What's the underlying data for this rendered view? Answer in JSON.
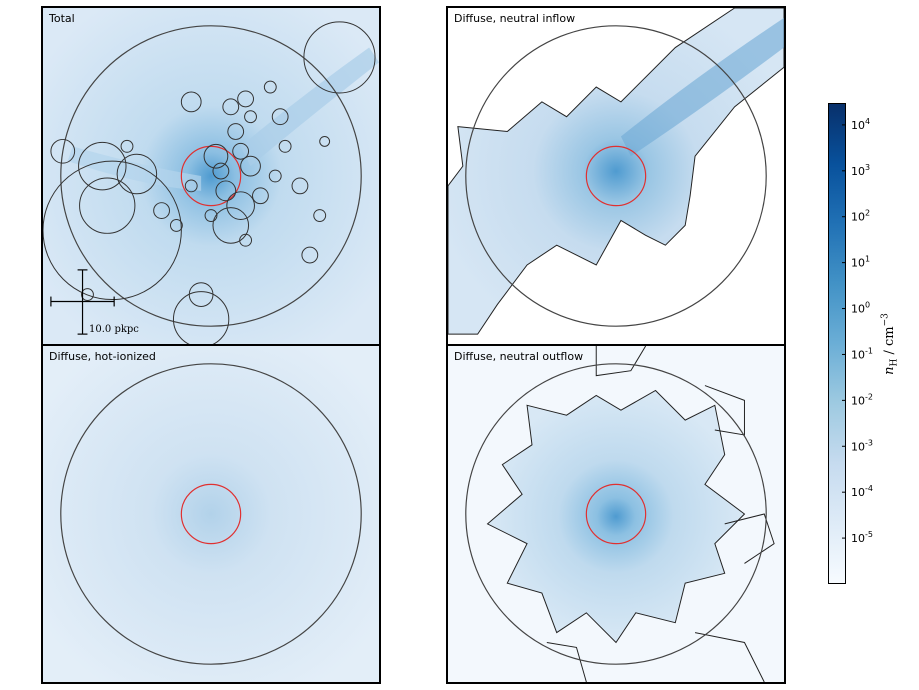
{
  "chart_data": {
    "type": "heatmap",
    "panels": [
      {
        "id": "total",
        "title": "Total",
        "scale_bar_label": "10.0 pkpc"
      },
      {
        "id": "inflow",
        "title": "Diffuse, neutral inflow"
      },
      {
        "id": "hot",
        "title": "Diffuse, hot-ionized"
      },
      {
        "id": "outflow",
        "title": "Diffuse, neutral outflow"
      }
    ],
    "colorbar": {
      "label": "n_H / cm^-3",
      "scale": "log",
      "range": [
        1e-06,
        30000.0
      ],
      "ticks": [
        {
          "value": "1e-5",
          "base": "10",
          "exp": "-5"
        },
        {
          "value": "1e-4",
          "base": "10",
          "exp": "-4"
        },
        {
          "value": "1e-3",
          "base": "10",
          "exp": "-3"
        },
        {
          "value": "1e-2",
          "base": "10",
          "exp": "-2"
        },
        {
          "value": "1e-1",
          "base": "10",
          "exp": "-1"
        },
        {
          "value": "1e0",
          "base": "10",
          "exp": "0"
        },
        {
          "value": "1e1",
          "base": "10",
          "exp": "1"
        },
        {
          "value": "1e2",
          "base": "10",
          "exp": "2"
        },
        {
          "value": "1e3",
          "base": "10",
          "exp": "3"
        },
        {
          "value": "1e4",
          "base": "10",
          "exp": "4"
        }
      ],
      "colormap": [
        "#f7fbff",
        "#deebf7",
        "#c6dbef",
        "#9ecae1",
        "#6baed6",
        "#4292c6",
        "#2171b5",
        "#08519c",
        "#08306b"
      ]
    },
    "colors": {
      "virial_circle": "#444444",
      "inner_circle": "#e03030",
      "contour": "#222222"
    }
  }
}
